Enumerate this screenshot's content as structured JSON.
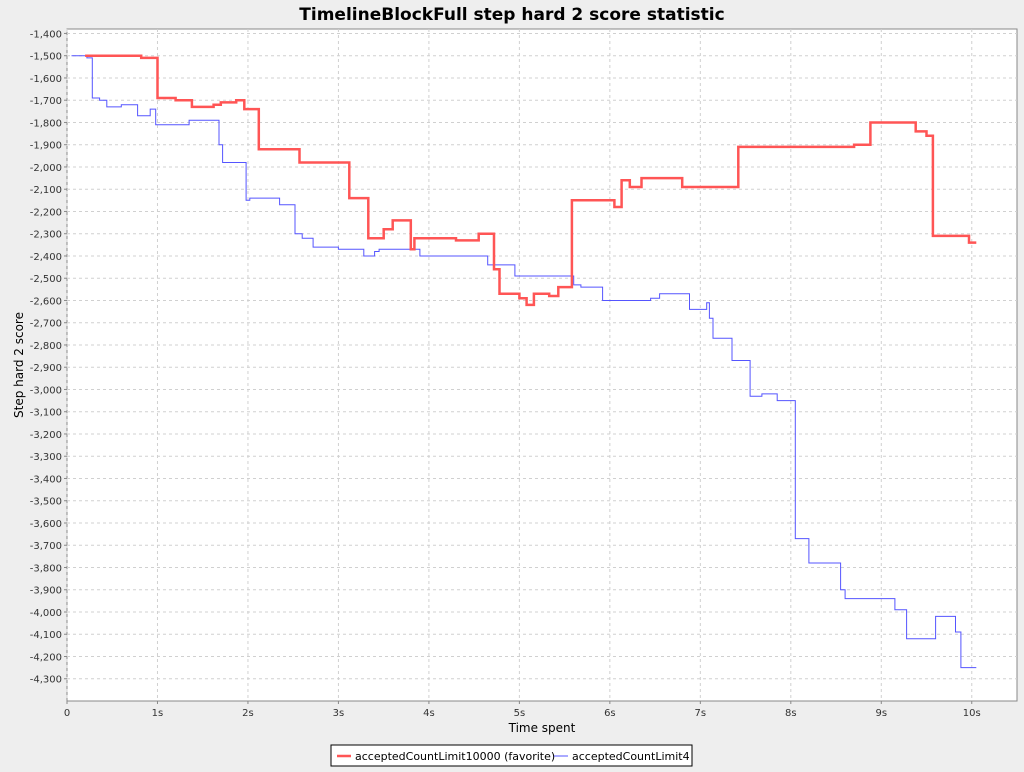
{
  "chart_data": {
    "type": "line",
    "title": "TimelineBlockFull step hard 2 score statistic",
    "xlabel": "Time spent",
    "ylabel": "Step hard 2 score",
    "xlim": [
      0,
      10.5
    ],
    "ylim": [
      -4400,
      -1380
    ],
    "x_ticks": [
      0,
      1,
      2,
      3,
      4,
      5,
      6,
      7,
      8,
      9,
      10
    ],
    "x_tick_labels": [
      "0",
      "1s",
      "2s",
      "3s",
      "4s",
      "5s",
      "6s",
      "7s",
      "8s",
      "9s",
      "10s"
    ],
    "y_ticks": [
      -1400,
      -1500,
      -1600,
      -1700,
      -1800,
      -1900,
      -2000,
      -2100,
      -2200,
      -2300,
      -2400,
      -2500,
      -2600,
      -2700,
      -2800,
      -2900,
      -3000,
      -3100,
      -3200,
      -3300,
      -3400,
      -3500,
      -3600,
      -3700,
      -3800,
      -3900,
      -4000,
      -4100,
      -4200,
      -4300
    ],
    "y_tick_labels": [
      "-1,400",
      "-1,500",
      "-1,600",
      "-1,700",
      "-1,800",
      "-1,900",
      "-2,000",
      "-2,100",
      "-2,200",
      "-2,300",
      "-2,400",
      "-2,500",
      "-2,600",
      "-2,700",
      "-2,800",
      "-2,900",
      "-3,000",
      "-3,100",
      "-3,200",
      "-3,300",
      "-3,400",
      "-3,500",
      "-3,600",
      "-3,700",
      "-3,800",
      "-3,900",
      "-4,000",
      "-4,100",
      "-4,200",
      "-4,300"
    ],
    "grid": true,
    "step": true,
    "legend_position": "bottom-center",
    "series": [
      {
        "name": "acceptedCountLimit10000 (favorite)",
        "color": "#ff5555",
        "points": [
          [
            0.2,
            -1500
          ],
          [
            0.82,
            -1500
          ],
          [
            0.82,
            -1510
          ],
          [
            1.0,
            -1510
          ],
          [
            1.0,
            -1690
          ],
          [
            1.2,
            -1690
          ],
          [
            1.2,
            -1700
          ],
          [
            1.38,
            -1700
          ],
          [
            1.38,
            -1730
          ],
          [
            1.62,
            -1730
          ],
          [
            1.62,
            -1720
          ],
          [
            1.7,
            -1720
          ],
          [
            1.7,
            -1710
          ],
          [
            1.87,
            -1710
          ],
          [
            1.87,
            -1700
          ],
          [
            1.96,
            -1700
          ],
          [
            1.96,
            -1740
          ],
          [
            2.12,
            -1740
          ],
          [
            2.12,
            -1920
          ],
          [
            2.57,
            -1920
          ],
          [
            2.57,
            -1980
          ],
          [
            3.12,
            -1980
          ],
          [
            3.12,
            -2140
          ],
          [
            3.33,
            -2140
          ],
          [
            3.33,
            -2320
          ],
          [
            3.5,
            -2320
          ],
          [
            3.5,
            -2280
          ],
          [
            3.6,
            -2280
          ],
          [
            3.6,
            -2240
          ],
          [
            3.8,
            -2240
          ],
          [
            3.8,
            -2370
          ],
          [
            3.84,
            -2370
          ],
          [
            3.84,
            -2320
          ],
          [
            4.3,
            -2320
          ],
          [
            4.3,
            -2330
          ],
          [
            4.55,
            -2330
          ],
          [
            4.55,
            -2300
          ],
          [
            4.72,
            -2300
          ],
          [
            4.72,
            -2460
          ],
          [
            4.78,
            -2460
          ],
          [
            4.78,
            -2570
          ],
          [
            5.0,
            -2570
          ],
          [
            5.0,
            -2590
          ],
          [
            5.08,
            -2590
          ],
          [
            5.08,
            -2620
          ],
          [
            5.16,
            -2620
          ],
          [
            5.16,
            -2570
          ],
          [
            5.33,
            -2570
          ],
          [
            5.33,
            -2580
          ],
          [
            5.43,
            -2580
          ],
          [
            5.43,
            -2540
          ],
          [
            5.58,
            -2540
          ],
          [
            5.58,
            -2150
          ],
          [
            6.05,
            -2150
          ],
          [
            6.05,
            -2180
          ],
          [
            6.13,
            -2180
          ],
          [
            6.13,
            -2060
          ],
          [
            6.22,
            -2060
          ],
          [
            6.22,
            -2090
          ],
          [
            6.35,
            -2090
          ],
          [
            6.35,
            -2050
          ],
          [
            6.8,
            -2050
          ],
          [
            6.8,
            -2090
          ],
          [
            7.42,
            -2090
          ],
          [
            7.42,
            -1910
          ],
          [
            8.7,
            -1910
          ],
          [
            8.7,
            -1900
          ],
          [
            8.88,
            -1900
          ],
          [
            8.88,
            -1800
          ],
          [
            9.38,
            -1800
          ],
          [
            9.38,
            -1840
          ],
          [
            9.5,
            -1840
          ],
          [
            9.5,
            -1860
          ],
          [
            9.57,
            -1860
          ],
          [
            9.57,
            -2310
          ],
          [
            9.97,
            -2310
          ],
          [
            9.97,
            -2340
          ],
          [
            10.05,
            -2340
          ]
        ]
      },
      {
        "name": "acceptedCountLimit4",
        "color": "#5555ff",
        "points": [
          [
            0.05,
            -1500
          ],
          [
            0.22,
            -1500
          ],
          [
            0.22,
            -1510
          ],
          [
            0.28,
            -1510
          ],
          [
            0.28,
            -1690
          ],
          [
            0.36,
            -1690
          ],
          [
            0.36,
            -1700
          ],
          [
            0.44,
            -1700
          ],
          [
            0.44,
            -1730
          ],
          [
            0.6,
            -1730
          ],
          [
            0.6,
            -1720
          ],
          [
            0.78,
            -1720
          ],
          [
            0.78,
            -1770
          ],
          [
            0.92,
            -1770
          ],
          [
            0.92,
            -1740
          ],
          [
            0.98,
            -1740
          ],
          [
            0.98,
            -1810
          ],
          [
            1.35,
            -1810
          ],
          [
            1.35,
            -1790
          ],
          [
            1.68,
            -1790
          ],
          [
            1.68,
            -1900
          ],
          [
            1.72,
            -1900
          ],
          [
            1.72,
            -1980
          ],
          [
            1.98,
            -1980
          ],
          [
            1.98,
            -2150
          ],
          [
            2.02,
            -2150
          ],
          [
            2.02,
            -2140
          ],
          [
            2.35,
            -2140
          ],
          [
            2.35,
            -2170
          ],
          [
            2.52,
            -2170
          ],
          [
            2.52,
            -2300
          ],
          [
            2.6,
            -2300
          ],
          [
            2.6,
            -2320
          ],
          [
            2.72,
            -2320
          ],
          [
            2.72,
            -2360
          ],
          [
            3.0,
            -2360
          ],
          [
            3.0,
            -2370
          ],
          [
            3.28,
            -2370
          ],
          [
            3.28,
            -2400
          ],
          [
            3.4,
            -2400
          ],
          [
            3.4,
            -2380
          ],
          [
            3.45,
            -2380
          ],
          [
            3.45,
            -2370
          ],
          [
            3.9,
            -2370
          ],
          [
            3.9,
            -2400
          ],
          [
            4.65,
            -2400
          ],
          [
            4.65,
            -2440
          ],
          [
            4.7,
            -2440
          ],
          [
            4.7,
            -2440
          ],
          [
            4.95,
            -2440
          ],
          [
            4.95,
            -2490
          ],
          [
            5.6,
            -2490
          ],
          [
            5.6,
            -2530
          ],
          [
            5.68,
            -2530
          ],
          [
            5.68,
            -2540
          ],
          [
            5.92,
            -2540
          ],
          [
            5.92,
            -2600
          ],
          [
            6.45,
            -2600
          ],
          [
            6.45,
            -2590
          ],
          [
            6.55,
            -2590
          ],
          [
            6.55,
            -2570
          ],
          [
            6.88,
            -2570
          ],
          [
            6.88,
            -2640
          ],
          [
            7.07,
            -2640
          ],
          [
            7.07,
            -2610
          ],
          [
            7.1,
            -2610
          ],
          [
            7.1,
            -2680
          ],
          [
            7.14,
            -2680
          ],
          [
            7.14,
            -2770
          ],
          [
            7.35,
            -2770
          ],
          [
            7.35,
            -2870
          ],
          [
            7.55,
            -2870
          ],
          [
            7.55,
            -3030
          ],
          [
            7.68,
            -3030
          ],
          [
            7.68,
            -3020
          ],
          [
            7.85,
            -3020
          ],
          [
            7.85,
            -3050
          ],
          [
            8.05,
            -3050
          ],
          [
            8.05,
            -3670
          ],
          [
            8.2,
            -3670
          ],
          [
            8.2,
            -3780
          ],
          [
            8.55,
            -3780
          ],
          [
            8.55,
            -3900
          ],
          [
            8.6,
            -3900
          ],
          [
            8.6,
            -3940
          ],
          [
            9.15,
            -3940
          ],
          [
            9.15,
            -3990
          ],
          [
            9.28,
            -3990
          ],
          [
            9.28,
            -4120
          ],
          [
            9.6,
            -4120
          ],
          [
            9.6,
            -4020
          ],
          [
            9.82,
            -4020
          ],
          [
            9.82,
            -4090
          ],
          [
            9.88,
            -4090
          ],
          [
            9.88,
            -4250
          ],
          [
            10.05,
            -4250
          ]
        ]
      }
    ]
  }
}
